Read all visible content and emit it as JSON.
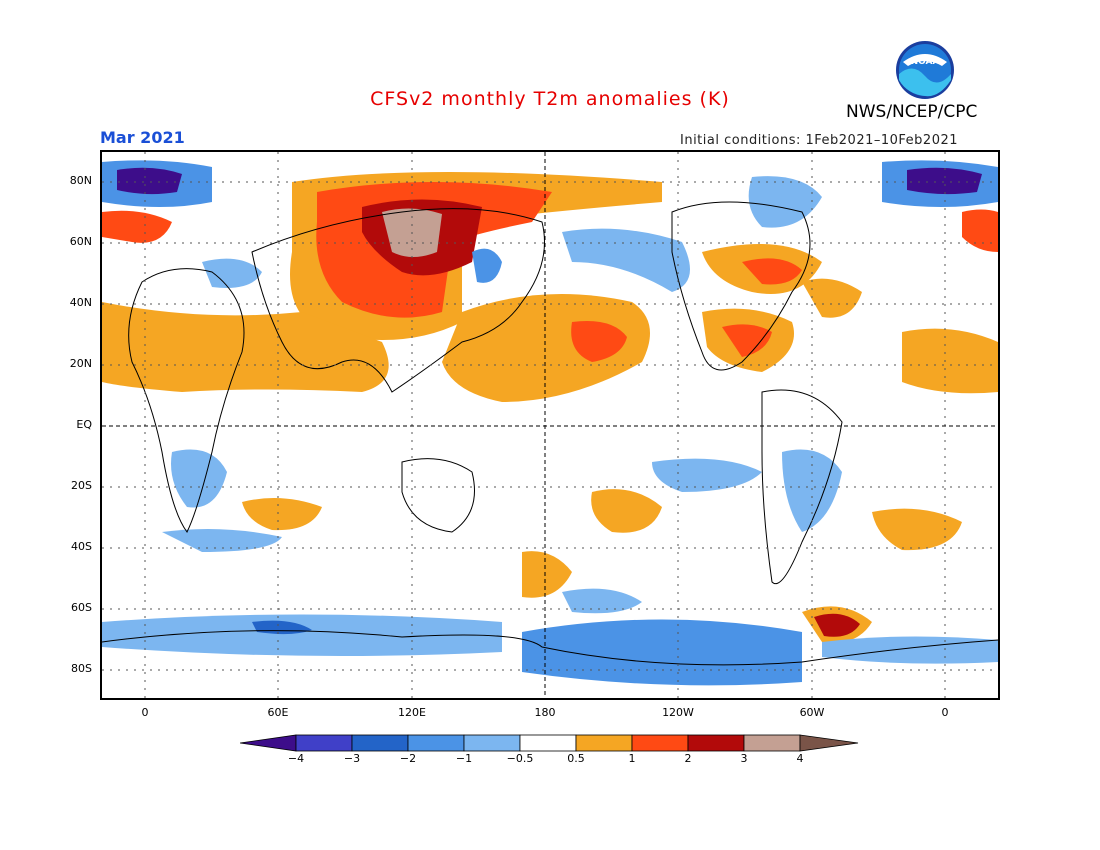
{
  "header": {
    "title": "CFSv2 monthly T2m anomalies (K)",
    "org": "NWS/NCEP/CPC",
    "logo_text": "NOAA",
    "month": "Mar 2021",
    "initial_conditions": "Initial conditions: 1Feb2021–10Feb2021"
  },
  "colors": {
    "title": "#e60000",
    "month": "#1a4fd6",
    "scale": [
      "#3d0d8a",
      "#4040c8",
      "#2364c8",
      "#4b93e6",
      "#7cb6f0",
      "#ffffff",
      "#f5a623",
      "#ff4a14",
      "#b20a0a",
      "#c4a093",
      "#7a5448"
    ]
  },
  "axes": {
    "lat_labels": [
      "80N",
      "60N",
      "40N",
      "20N",
      "EQ",
      "20S",
      "40S",
      "60S",
      "80S"
    ],
    "lon_labels": [
      "0",
      "60E",
      "120E",
      "180",
      "120W",
      "60W",
      "0"
    ]
  },
  "colorbar": {
    "labels": [
      "−4",
      "−3",
      "−2",
      "−1",
      "−0.5",
      "0.5",
      "1",
      "2",
      "3",
      "4"
    ]
  }
}
